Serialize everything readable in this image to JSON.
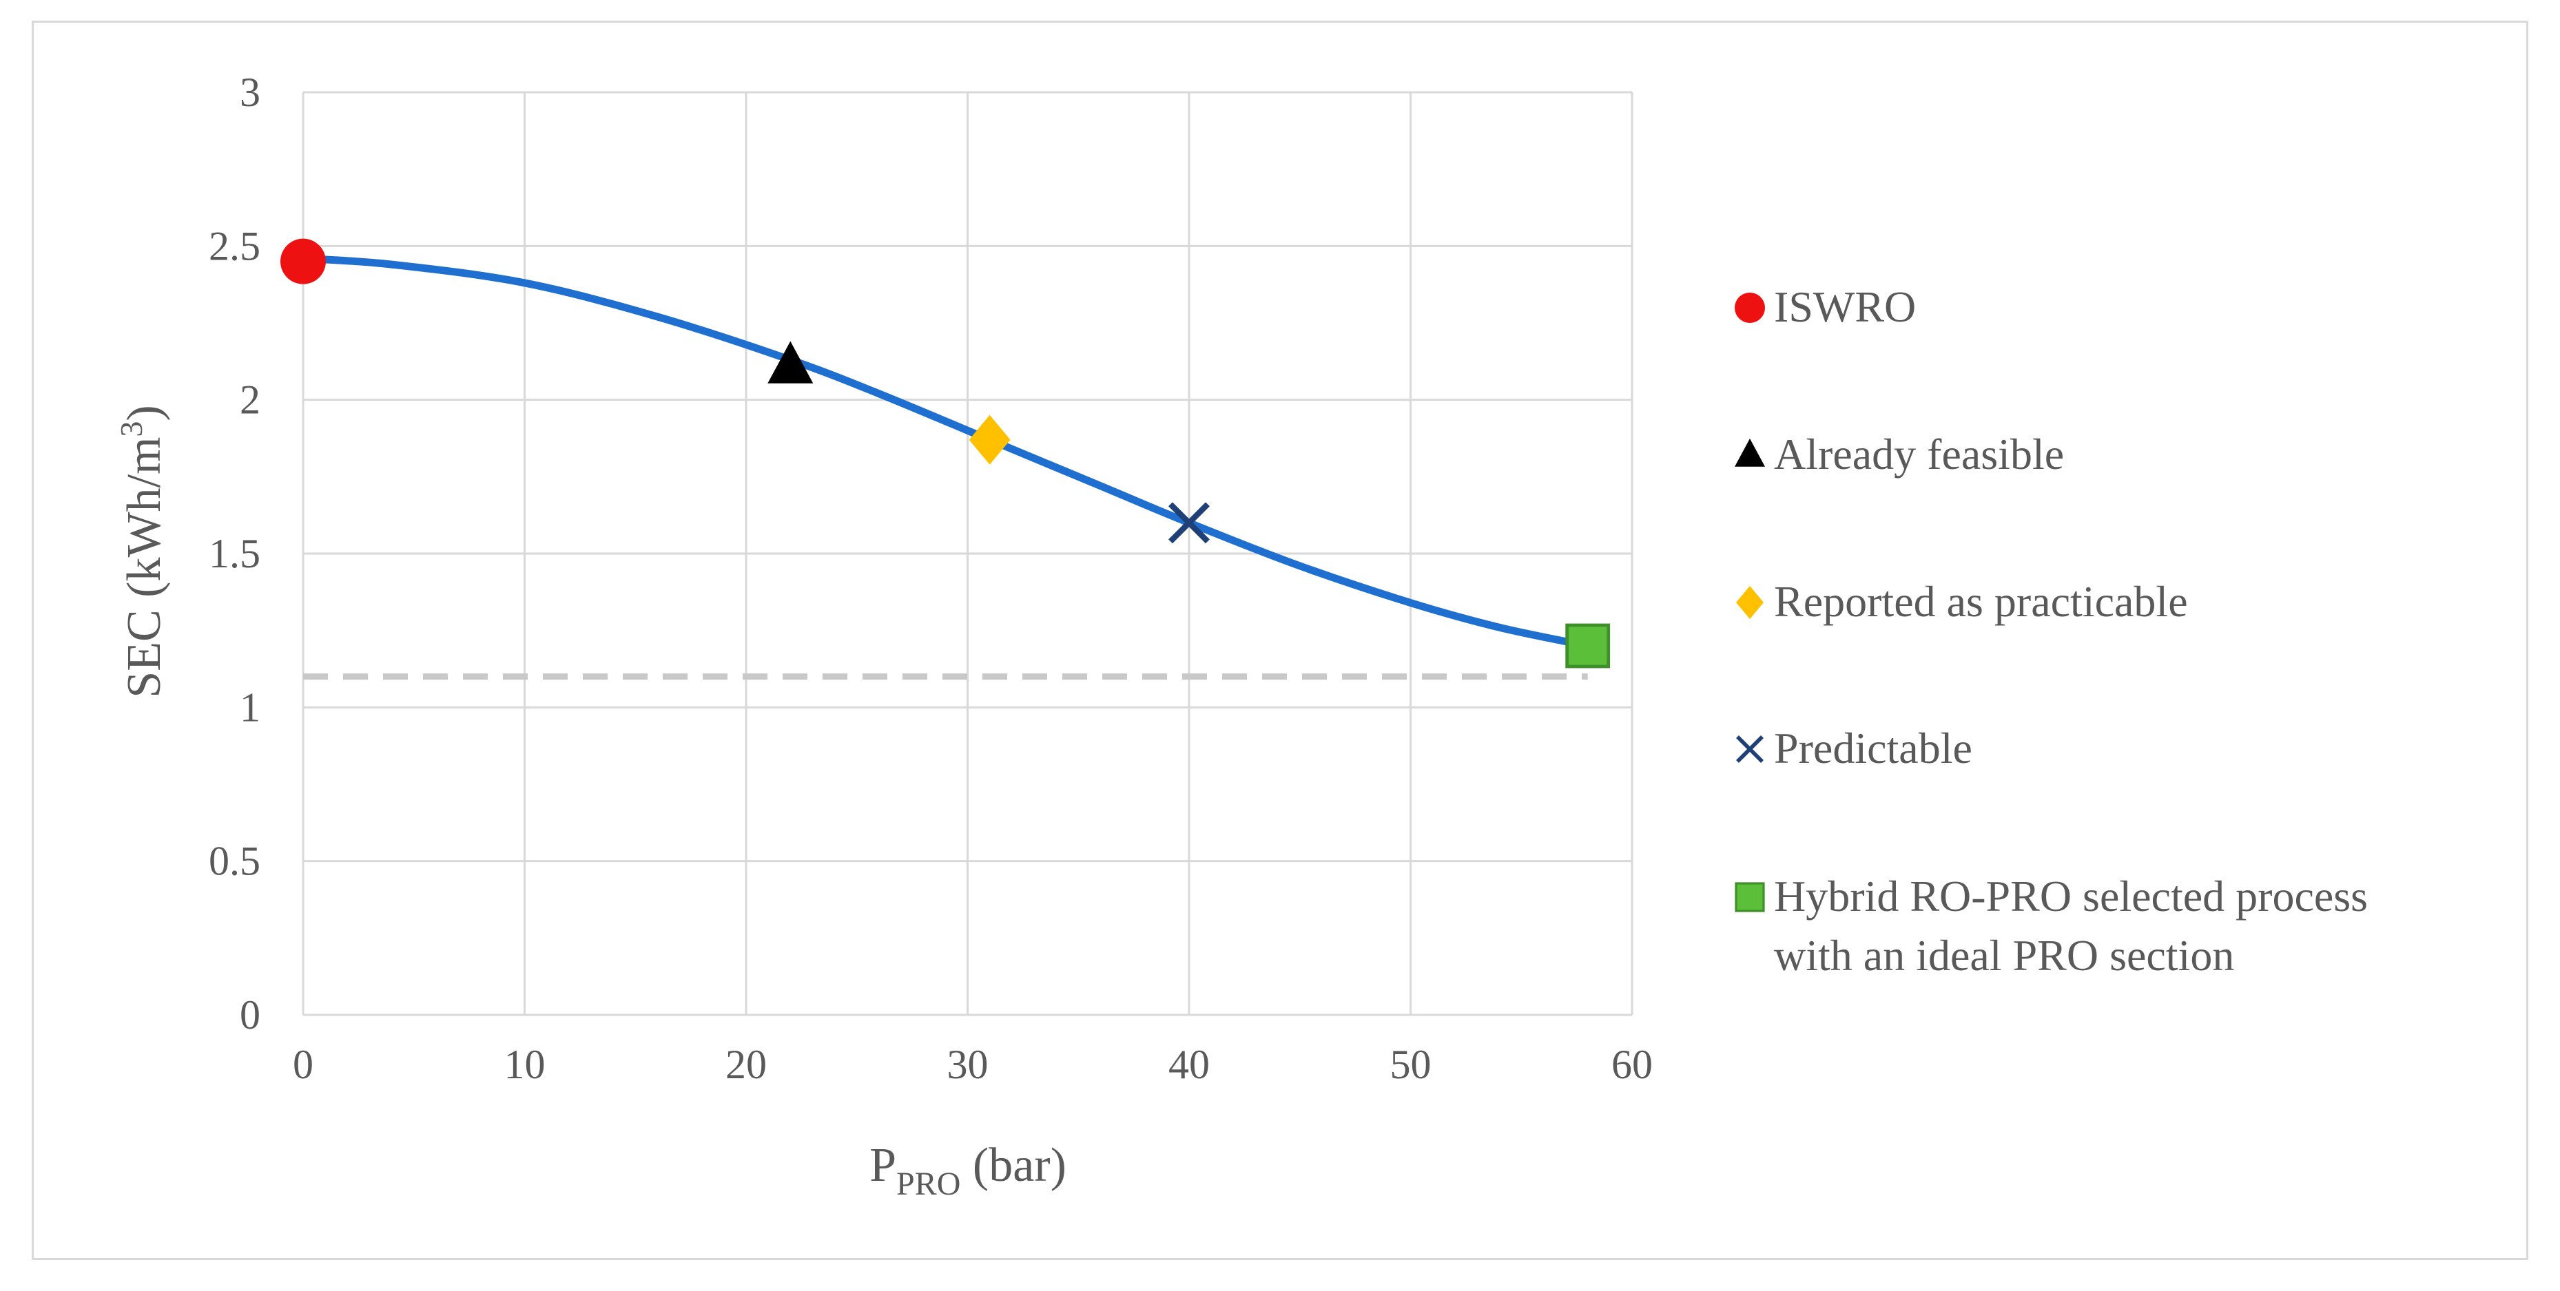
{
  "chart_data": {
    "type": "line",
    "xlabel": {
      "main": "P",
      "sub": "PRO",
      "suffix": " (bar)"
    },
    "ylabel": {
      "main": "SEC (kWh/m",
      "sup": "3",
      "suffix": ")"
    },
    "xlim": [
      0,
      60
    ],
    "ylim": [
      0,
      3
    ],
    "xticks": [
      0,
      10,
      20,
      30,
      40,
      50,
      60
    ],
    "yticks": [
      0,
      0.5,
      1,
      1.5,
      2,
      2.5,
      3
    ],
    "ytick_labels": [
      "0",
      "0.5",
      "1",
      "1.5",
      "2",
      "2.5",
      "3"
    ],
    "grid": true,
    "legend_position": "right",
    "curve": {
      "color": "#1f6fd1",
      "x": [
        0,
        4,
        10,
        16,
        22,
        26,
        31,
        36,
        40,
        45,
        50,
        54,
        58
      ],
      "y": [
        2.46,
        2.44,
        2.38,
        2.27,
        2.13,
        2.02,
        1.87,
        1.72,
        1.6,
        1.46,
        1.34,
        1.26,
        1.2
      ]
    },
    "reference_line": {
      "y": 1.1,
      "color": "#c8c8c8",
      "style": "dashed"
    },
    "series": [
      {
        "name": "ISWRO",
        "marker": "circle",
        "color": "#ee1111",
        "x": 0,
        "y": 2.45
      },
      {
        "name": "Already feasible",
        "marker": "triangle",
        "color": "#000000",
        "x": 22,
        "y": 2.11
      },
      {
        "name": "Reported as practicable",
        "marker": "diamond",
        "color": "#ffc000",
        "x": 31,
        "y": 1.87
      },
      {
        "name": "Predictable",
        "marker": "x",
        "color": "#1f3f77",
        "x": 40,
        "y": 1.6
      },
      {
        "name": "Hybrid RO-PRO selected process",
        "name_line2": "with an ideal PRO section",
        "marker": "square",
        "color": "#5bbf3a",
        "x": 58,
        "y": 1.2
      }
    ]
  }
}
